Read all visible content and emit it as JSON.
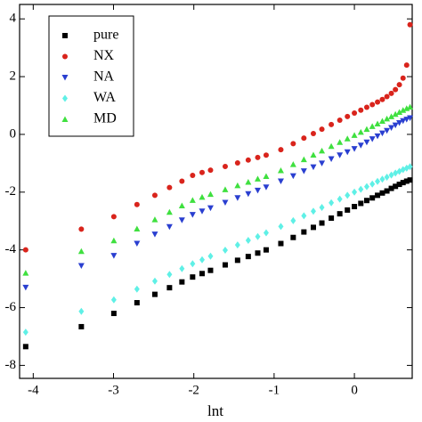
{
  "chart_data": {
    "type": "scatter",
    "x_label": "lnt",
    "x": [
      -4.094,
      -3.401,
      -2.996,
      -2.708,
      -2.485,
      -2.303,
      -2.148,
      -2.015,
      -1.897,
      -1.792,
      -1.609,
      -1.455,
      -1.322,
      -1.204,
      -1.099,
      -0.916,
      -0.762,
      -0.629,
      -0.511,
      -0.405,
      -0.288,
      -0.182,
      -0.087,
      0,
      0.08,
      0.154,
      0.223,
      0.288,
      0.348,
      0.405,
      0.46,
      0.511,
      0.56,
      0.606,
      0.651,
      0.693
    ],
    "series": [
      {
        "name": "pure",
        "color": "#000000",
        "marker": "square",
        "values": [
          -7.35,
          -6.66,
          -6.2,
          -5.83,
          -5.54,
          -5.31,
          -5.11,
          -4.94,
          -4.82,
          -4.71,
          -4.52,
          -4.36,
          -4.23,
          -4.11,
          -4.0,
          -3.78,
          -3.57,
          -3.38,
          -3.22,
          -3.07,
          -2.9,
          -2.75,
          -2.62,
          -2.5,
          -2.39,
          -2.29,
          -2.2,
          -2.11,
          -2.03,
          -1.96,
          -1.87,
          -1.8,
          -1.73,
          -1.67,
          -1.62,
          -1.58
        ]
      },
      {
        "name": "NX",
        "color": "#d9241c",
        "marker": "circle",
        "values": [
          -4.0,
          -3.28,
          -2.85,
          -2.43,
          -2.11,
          -1.84,
          -1.62,
          -1.42,
          -1.32,
          -1.24,
          -1.11,
          -0.99,
          -0.89,
          -0.8,
          -0.72,
          -0.53,
          -0.32,
          -0.13,
          0.03,
          0.18,
          0.34,
          0.49,
          0.62,
          0.74,
          0.84,
          0.94,
          1.03,
          1.12,
          1.21,
          1.31,
          1.42,
          1.55,
          1.72,
          1.95,
          2.4,
          3.8
        ]
      },
      {
        "name": "NA",
        "color": "#2a3fd0",
        "marker": "triangle-down",
        "values": [
          -5.3,
          -4.55,
          -4.2,
          -3.78,
          -3.46,
          -3.2,
          -2.97,
          -2.78,
          -2.66,
          -2.55,
          -2.36,
          -2.2,
          -2.06,
          -1.94,
          -1.83,
          -1.62,
          -1.44,
          -1.27,
          -1.13,
          -1.0,
          -0.85,
          -0.72,
          -0.61,
          -0.5,
          -0.38,
          -0.27,
          -0.16,
          -0.06,
          0.04,
          0.13,
          0.23,
          0.32,
          0.4,
          0.47,
          0.52,
          0.57
        ]
      },
      {
        "name": "WA",
        "color": "#5ff0e6",
        "marker": "diamond",
        "values": [
          -6.85,
          -6.13,
          -5.73,
          -5.36,
          -5.08,
          -4.85,
          -4.65,
          -4.48,
          -4.34,
          -4.22,
          -4.01,
          -3.83,
          -3.67,
          -3.54,
          -3.41,
          -3.19,
          -2.99,
          -2.82,
          -2.66,
          -2.53,
          -2.37,
          -2.24,
          -2.11,
          -2.0,
          -1.9,
          -1.81,
          -1.72,
          -1.63,
          -1.55,
          -1.48,
          -1.41,
          -1.34,
          -1.28,
          -1.22,
          -1.17,
          -1.12
        ]
      },
      {
        "name": "MD",
        "color": "#3fe03f",
        "marker": "triangle-up",
        "values": [
          -4.8,
          -4.05,
          -3.68,
          -3.27,
          -2.95,
          -2.69,
          -2.47,
          -2.28,
          -2.17,
          -2.07,
          -1.91,
          -1.77,
          -1.65,
          -1.54,
          -1.45,
          -1.25,
          -1.04,
          -0.87,
          -0.71,
          -0.57,
          -0.41,
          -0.27,
          -0.15,
          -0.03,
          0.08,
          0.18,
          0.28,
          0.37,
          0.46,
          0.54,
          0.62,
          0.7,
          0.77,
          0.84,
          0.9,
          0.95
        ]
      }
    ],
    "xlim": [
      -4.17,
      0.72
    ],
    "xticks": [
      -4,
      -3,
      -2,
      -1,
      0
    ],
    "ylim": [
      -8.45,
      4.5
    ],
    "yticks": [
      -8,
      -6,
      -4,
      -2,
      0,
      2,
      4
    ],
    "legend": "upper left"
  }
}
